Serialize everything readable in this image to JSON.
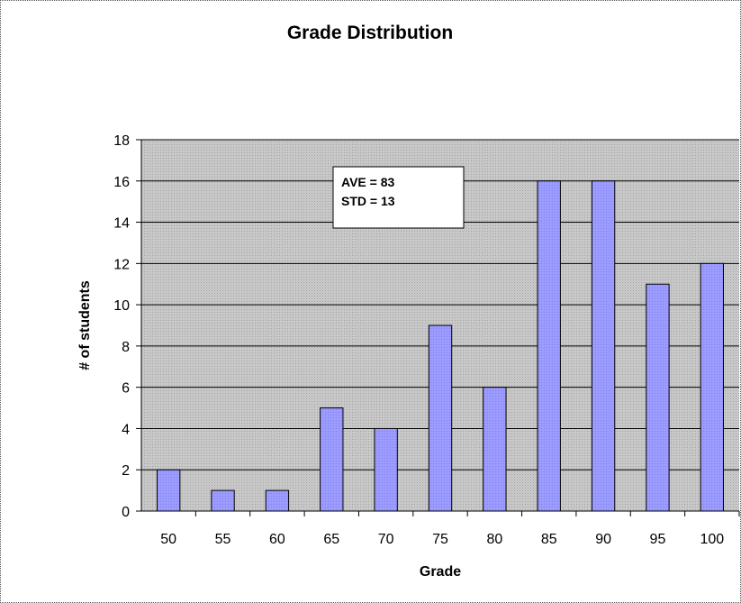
{
  "chart_data": {
    "type": "bar",
    "title": "Grade Distribution",
    "xlabel": "Grade",
    "ylabel": "# of students",
    "categories": [
      "50",
      "55",
      "60",
      "65",
      "70",
      "75",
      "80",
      "85",
      "90",
      "95",
      "100"
    ],
    "values": [
      2,
      1,
      1,
      5,
      4,
      9,
      6,
      16,
      16,
      11,
      12
    ],
    "ylim": [
      0,
      18
    ],
    "yticks": [
      "0",
      "2",
      "4",
      "6",
      "8",
      "10",
      "12",
      "14",
      "16",
      "18"
    ],
    "grid": true,
    "legend": "none",
    "annotation": {
      "line1": "AVE = 83",
      "line2": "STD = 13"
    },
    "colors": {
      "bar_fill": "#9999ff",
      "bar_stroke": "#000000",
      "plot_background": "#c0c0c0",
      "gridline": "#000000"
    }
  }
}
